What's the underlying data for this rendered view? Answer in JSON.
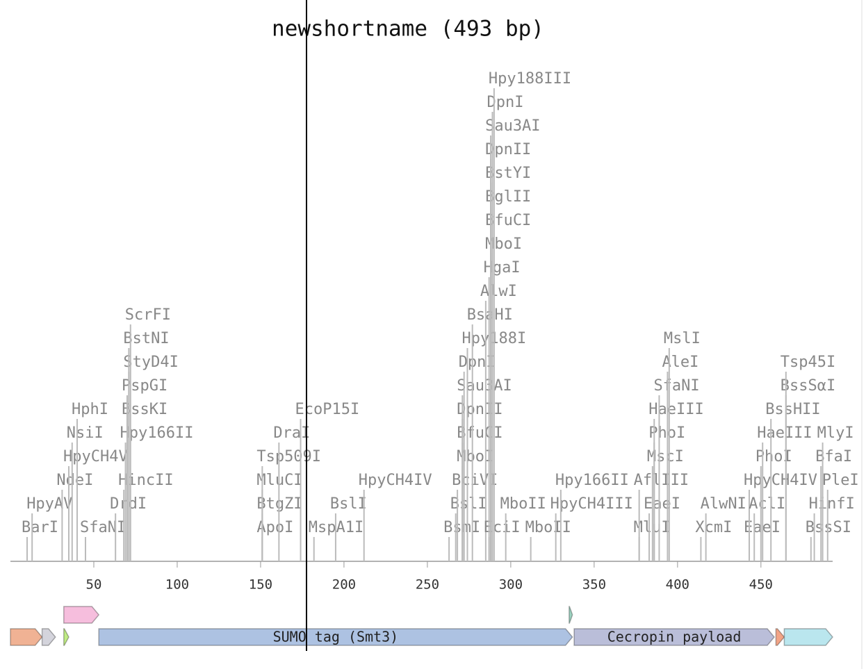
{
  "title": "newshortname (493 bp)",
  "length": 493,
  "axis": {
    "ticks": [
      50,
      100,
      150,
      200,
      250,
      300,
      350,
      400,
      450
    ]
  },
  "enzymes": [
    {
      "name": "BarI",
      "position": 10
    },
    {
      "name": "HpyAV",
      "position": 13
    },
    {
      "name": "SfaNI",
      "position": 45
    },
    {
      "name": "NdeI",
      "position": 31
    },
    {
      "name": "DrdI",
      "position": 63
    },
    {
      "name": "HincII",
      "position": 68
    },
    {
      "name": "HpyCH4V",
      "position": 35
    },
    {
      "name": "NsiI",
      "position": 37
    },
    {
      "name": "Hpy166II",
      "position": 69
    },
    {
      "name": "HphI",
      "position": 40
    },
    {
      "name": "BssKI",
      "position": 70
    },
    {
      "name": "PspGI",
      "position": 70
    },
    {
      "name": "StyD4I",
      "position": 71
    },
    {
      "name": "BstNI",
      "position": 71
    },
    {
      "name": "ScrFI",
      "position": 72
    },
    {
      "name": "ApoI",
      "position": 151
    },
    {
      "name": "BtgZI",
      "position": 151
    },
    {
      "name": "MluCI",
      "position": 151
    },
    {
      "name": "Tsp509I",
      "position": 151
    },
    {
      "name": "DraI",
      "position": 161
    },
    {
      "name": "EcoP15I",
      "position": 174
    },
    {
      "name": "MspA1I",
      "position": 182
    },
    {
      "name": "BslI",
      "position": 195
    },
    {
      "name": "HpyCH4IV",
      "position": 212
    },
    {
      "name": "BsmI",
      "position": 263
    },
    {
      "name": "BslI",
      "position": 267
    },
    {
      "name": "BciVI",
      "position": 268
    },
    {
      "name": "MboI",
      "position": 271
    },
    {
      "name": "BfuCI",
      "position": 271
    },
    {
      "name": "DpnII",
      "position": 271
    },
    {
      "name": "Sau3AI",
      "position": 271
    },
    {
      "name": "DpnI",
      "position": 272
    },
    {
      "name": "Hpy188I",
      "position": 274
    },
    {
      "name": "BsaHI",
      "position": 277
    },
    {
      "name": "AlwI",
      "position": 285
    },
    {
      "name": "EciI",
      "position": 287
    },
    {
      "name": "HgaI",
      "position": 287
    },
    {
      "name": "MboI",
      "position": 288
    },
    {
      "name": "BfuCI",
      "position": 288
    },
    {
      "name": "BglII",
      "position": 288
    },
    {
      "name": "BstYI",
      "position": 288
    },
    {
      "name": "DpnII",
      "position": 288
    },
    {
      "name": "Sau3AI",
      "position": 288
    },
    {
      "name": "DpnI",
      "position": 289
    },
    {
      "name": "Hpy188III",
      "position": 290
    },
    {
      "name": "MboII",
      "position": 297
    },
    {
      "name": "MboII",
      "position": 312
    },
    {
      "name": "HpyCH4III",
      "position": 327
    },
    {
      "name": "Hpy166II",
      "position": 330
    },
    {
      "name": "MluI",
      "position": 377
    },
    {
      "name": "AflIII",
      "position": 377
    },
    {
      "name": "EaeI",
      "position": 383
    },
    {
      "name": "MscI",
      "position": 385
    },
    {
      "name": "PhoI",
      "position": 386
    },
    {
      "name": "HaeIII",
      "position": 386
    },
    {
      "name": "SfaNI",
      "position": 389
    },
    {
      "name": "AleI",
      "position": 394
    },
    {
      "name": "MslI",
      "position": 395
    },
    {
      "name": "XcmI",
      "position": 414
    },
    {
      "name": "AlwNI",
      "position": 417
    },
    {
      "name": "EaeI",
      "position": 443
    },
    {
      "name": "HpyCH4IV",
      "position": 443
    },
    {
      "name": "AclI",
      "position": 446
    },
    {
      "name": "PhoI",
      "position": 450
    },
    {
      "name": "HaeIII",
      "position": 451
    },
    {
      "name": "BssHII",
      "position": 456
    },
    {
      "name": "BssSαI",
      "position": 465
    },
    {
      "name": "Tsp45I",
      "position": 465
    },
    {
      "name": "BssSI",
      "position": 480
    },
    {
      "name": "HinfI",
      "position": 482
    },
    {
      "name": "BfaI",
      "position": 486
    },
    {
      "name": "MlyI",
      "position": 487
    },
    {
      "name": "PleI",
      "position": 490
    }
  ],
  "features": [
    {
      "start": 0,
      "end": 19,
      "color": "#f0b294"
    },
    {
      "start": 19,
      "end": 27,
      "color": "#d4d4dc"
    },
    {
      "start": 32,
      "end": 35,
      "color": "#c0ec84"
    },
    {
      "label": "SUMO tag (Smt3)",
      "start": 53,
      "end": 337,
      "color": "#adc2e2"
    },
    {
      "label": "Cecropin payload",
      "start": 338,
      "end": 458,
      "color": "#babed9"
    },
    {
      "start": 459,
      "end": 464,
      "color": "#f2a486"
    },
    {
      "start": 464,
      "end": 493,
      "color": "#bae6ee"
    },
    {
      "start": 32,
      "end": 53,
      "color": "#f6bedd"
    },
    {
      "start": 335,
      "end": 337,
      "color": "#9ed4c2"
    }
  ]
}
